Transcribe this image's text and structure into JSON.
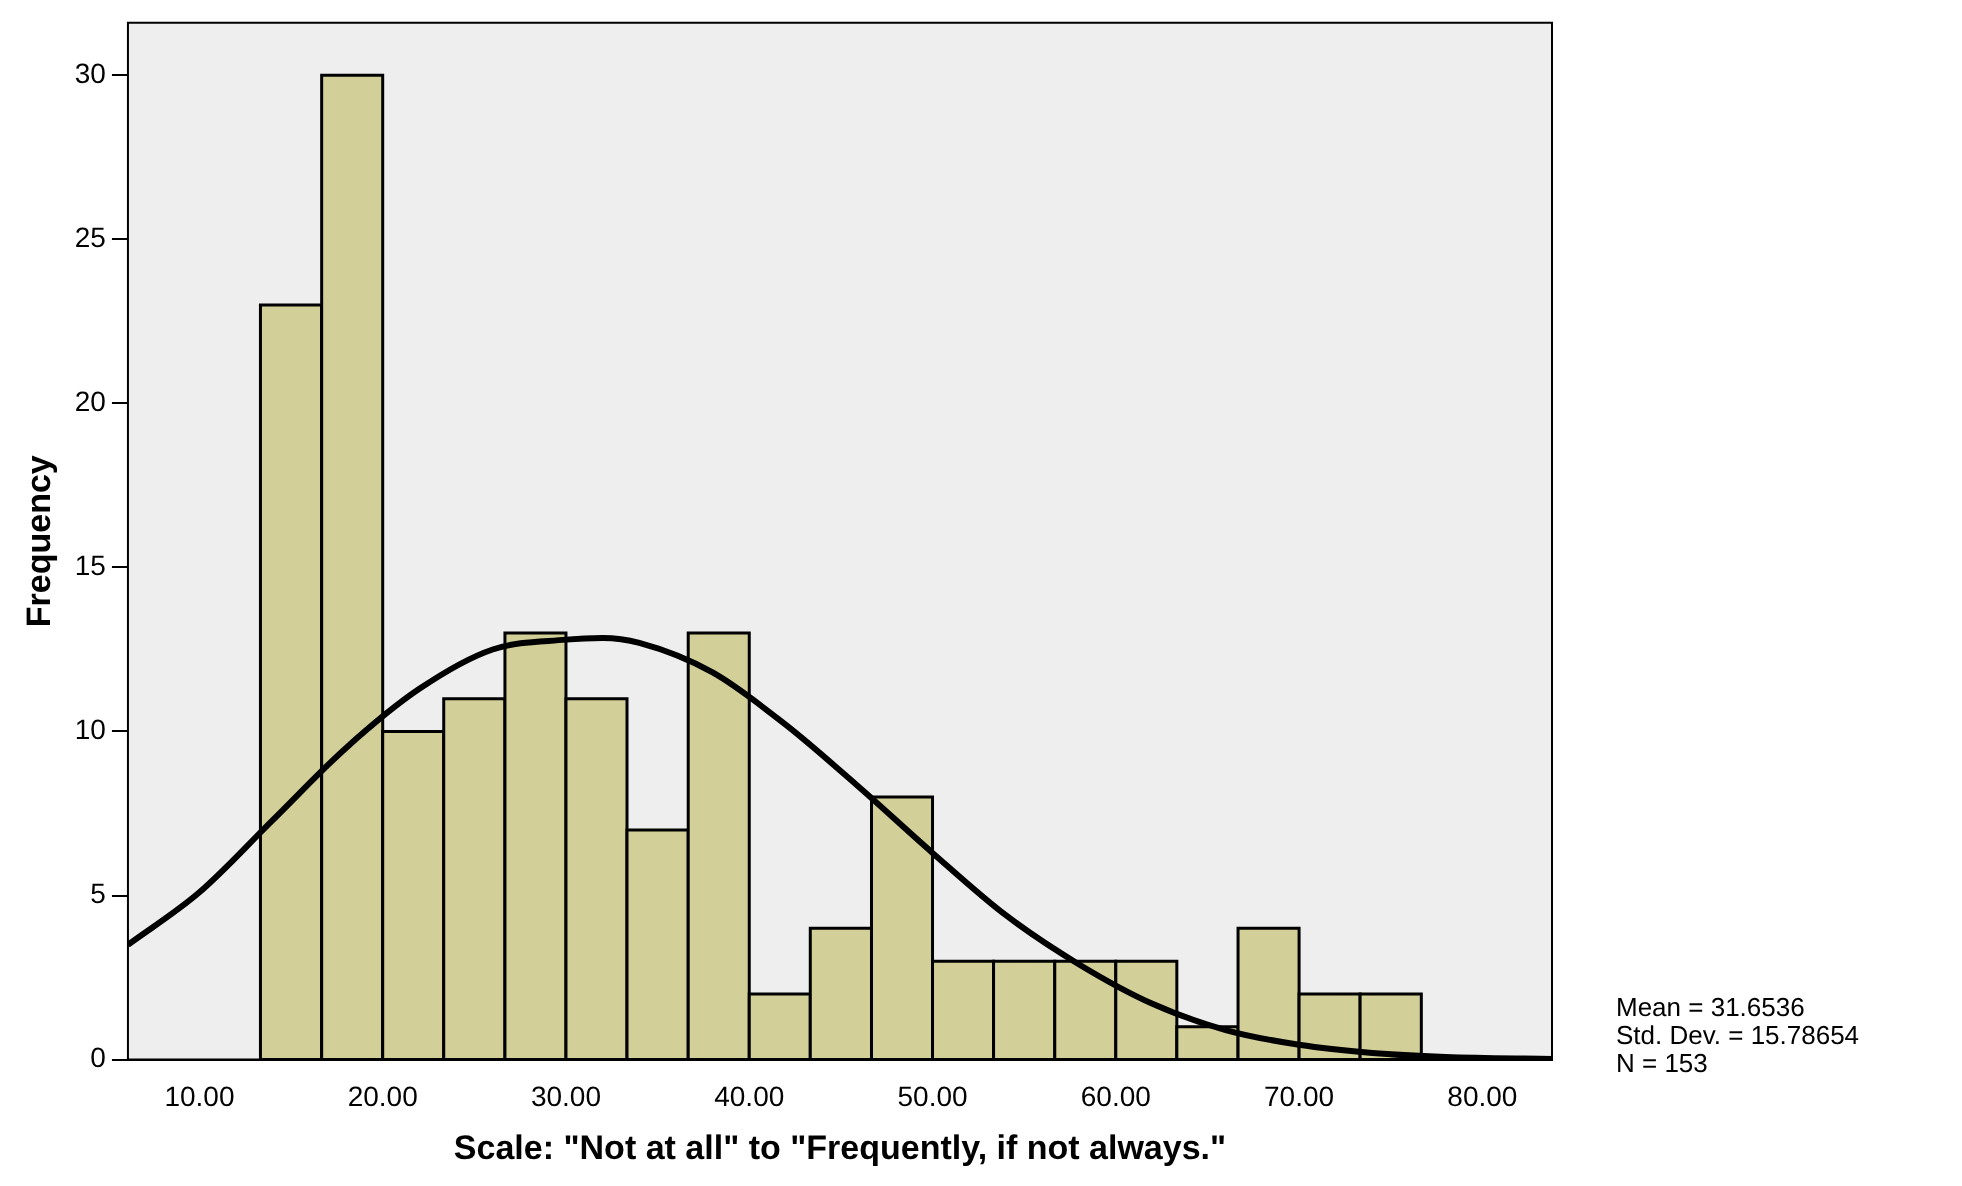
{
  "chart_data": {
    "type": "histogram",
    "xlabel": "Scale: \"Not at all\" to \"Frequently, if not always.\"",
    "ylabel": "Frequency",
    "bins": [
      13.33,
      16.67,
      20,
      23.33,
      26.67,
      30,
      33.33,
      36.67,
      40,
      43.33,
      46.67,
      50,
      53.33,
      56.67,
      60,
      63.33,
      66.67,
      70,
      73.33,
      76.67
    ],
    "values": [
      23,
      30,
      10,
      11,
      13,
      11,
      7,
      13,
      2,
      4,
      8,
      3,
      3,
      3,
      3,
      1,
      4,
      2,
      2
    ],
    "color": "#d3cf98",
    "series": [
      {
        "type": "line",
        "color": "#000000",
        "x": [
          6.1,
          10,
          14,
          18,
          22,
          26,
          30,
          32,
          34,
          38,
          42,
          46,
          50,
          54,
          58,
          62,
          66,
          70,
          74,
          78,
          83.8
        ],
        "values": [
          3.5,
          5.1,
          7.3,
          9.5,
          11.3,
          12.5,
          12.8,
          12.85,
          12.7,
          11.8,
          10.2,
          8.3,
          6.3,
          4.4,
          2.9,
          1.7,
          0.9,
          0.45,
          0.2,
          0.08,
          0.02
        ]
      }
    ],
    "xlim": [
      6.1,
      83.8
    ],
    "xticks": [
      {
        "value": 10,
        "label": "10.00"
      },
      {
        "value": 20,
        "label": "20.00"
      },
      {
        "value": 30,
        "label": "30.00"
      },
      {
        "value": 40,
        "label": "40.00"
      },
      {
        "value": 50,
        "label": "50.00"
      },
      {
        "value": 60,
        "label": "60.00"
      },
      {
        "value": 70,
        "label": "70.00"
      },
      {
        "value": 80,
        "label": "80.00"
      }
    ],
    "ylim": [
      0,
      31.6
    ],
    "yticks": [
      0,
      5,
      10,
      15,
      20,
      25,
      30
    ],
    "grid": false,
    "legend": false,
    "annotations": [
      "Mean = 31.6536",
      "Std. Dev. = 15.78654",
      "N = 153"
    ]
  }
}
